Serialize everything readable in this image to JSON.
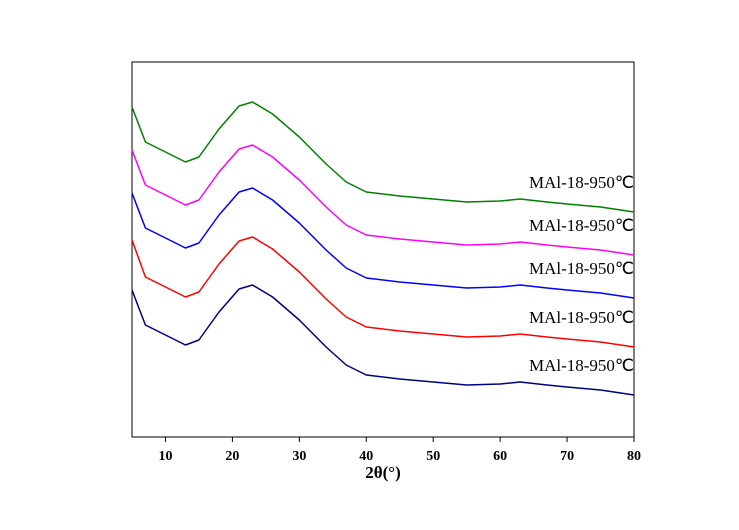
{
  "chart_data": {
    "type": "line",
    "x_label": "2θ(°)",
    "x": [
      5,
      7,
      10,
      13,
      15,
      18,
      21,
      23,
      26,
      30,
      34,
      37,
      40,
      45,
      50,
      55,
      60,
      63,
      67,
      70,
      75,
      80
    ],
    "series": [
      {
        "color": "#000080",
        "values": [
          147,
          112,
          102,
          92,
          97,
          125,
          148,
          152,
          140,
          117,
          90,
          72,
          62,
          58,
          55,
          52,
          53,
          55,
          52,
          50,
          47,
          42
        ]
      },
      {
        "color": "#ff0000",
        "values": [
          197,
          160,
          150,
          140,
          145,
          173,
          196,
          200,
          188,
          165,
          138,
          120,
          110,
          106,
          103,
          100,
          101,
          103,
          100,
          98,
          95,
          90
        ]
      },
      {
        "color": "#0000ff",
        "values": [
          244,
          209,
          199,
          189,
          194,
          222,
          245,
          249,
          237,
          214,
          187,
          169,
          159,
          155,
          152,
          149,
          150,
          152,
          149,
          147,
          144,
          139
        ]
      },
      {
        "color": "#ff00ff",
        "values": [
          287,
          252,
          242,
          232,
          237,
          265,
          288,
          292,
          280,
          257,
          230,
          212,
          202,
          198,
          195,
          192,
          193,
          195,
          192,
          190,
          187,
          182
        ]
      },
      {
        "color": "#008000",
        "values": [
          330,
          295,
          285,
          275,
          280,
          308,
          331,
          335,
          323,
          300,
          273,
          255,
          245,
          241,
          238,
          235,
          236,
          238,
          235,
          233,
          230,
          225
        ]
      }
    ],
    "annotations": [
      "MAl-18-950℃",
      "MAl-18-950℃",
      "MAl-18-950℃",
      "MAl-18-950℃",
      "MAl-18-950℃"
    ],
    "xlim": [
      5,
      80
    ],
    "xticks": [
      10,
      20,
      30,
      40,
      50,
      60,
      70,
      80
    ],
    "ylim": [
      0,
      375
    ]
  }
}
